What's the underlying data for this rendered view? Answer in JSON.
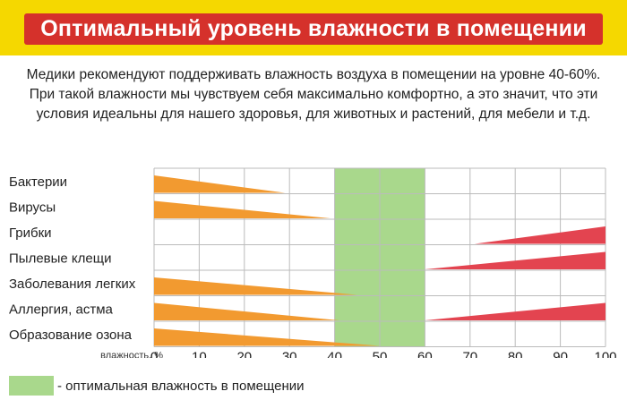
{
  "header": {
    "title": "Оптимальный уровень влажности в помещении"
  },
  "intro": {
    "lines": [
      "Медики рекомендуют поддерживать влажность воздуха в помещении на уровне 40-60%.",
      "При такой влажности мы чувствуем себя максимально комфортно, а это значит, что эти",
      "условия идеальны для нашего здоровья, для животных и растений, для мебели и т.д."
    ]
  },
  "colors": {
    "title_band": "#f5d800",
    "title_bg": "#d5312b",
    "low_side": "#f29a30",
    "high_side": "#e34450",
    "optimal": "#a9d88c",
    "grid": "#bbbbbb"
  },
  "chart_data": {
    "type": "bar",
    "title": "Оптимальный уровень влажности в помещении",
    "xlabel": "влажность, %",
    "xlim": [
      0,
      100
    ],
    "xticks": [
      0,
      10,
      20,
      30,
      40,
      50,
      60,
      70,
      80,
      90,
      100
    ],
    "optimal_range": [
      40,
      60
    ],
    "categories": [
      "Бактерии",
      "Вирусы",
      "Грибки",
      "Пылевые клещи",
      "Заболевания легких",
      "Аллергия, астма",
      "Образование озона"
    ],
    "series": [
      {
        "name": "Бактерии",
        "low_end": 29,
        "high_start": null
      },
      {
        "name": "Вирусы",
        "low_end": 39,
        "high_start": null
      },
      {
        "name": "Грибки",
        "low_end": null,
        "high_start": 71
      },
      {
        "name": "Пылевые клещи",
        "low_end": null,
        "high_start": 60
      },
      {
        "name": "Заболевания легких",
        "low_end": 45,
        "high_start": null
      },
      {
        "name": "Аллергия, астма",
        "low_end": 41,
        "high_start": 60
      },
      {
        "name": "Образование озона",
        "low_end": 50,
        "high_start": null
      }
    ]
  },
  "legend": {
    "label": "- оптимальная влажность в помещении"
  }
}
